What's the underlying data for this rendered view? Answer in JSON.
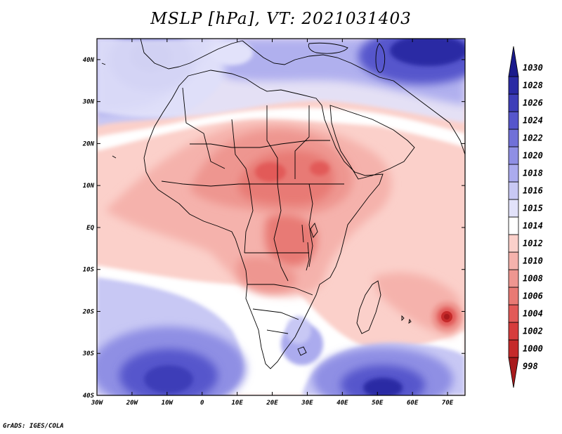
{
  "title": "MSLP [hPa], VT: 2021031403",
  "credit": "GrADS: IGES/COLA",
  "map": {
    "projection": "lat-lon",
    "lon_range": [
      -30,
      75
    ],
    "lat_range": [
      -40,
      45
    ],
    "x_ticks": [
      {
        "value": -30,
        "label": "30W"
      },
      {
        "value": -20,
        "label": "20W"
      },
      {
        "value": -10,
        "label": "10W"
      },
      {
        "value": 0,
        "label": "0"
      },
      {
        "value": 10,
        "label": "10E"
      },
      {
        "value": 20,
        "label": "20E"
      },
      {
        "value": 30,
        "label": "30E"
      },
      {
        "value": 40,
        "label": "40E"
      },
      {
        "value": 50,
        "label": "50E"
      },
      {
        "value": 60,
        "label": "60E"
      },
      {
        "value": 70,
        "label": "70E"
      }
    ],
    "y_ticks": [
      {
        "value": 40,
        "label": "40N"
      },
      {
        "value": 30,
        "label": "30N"
      },
      {
        "value": 20,
        "label": "20N"
      },
      {
        "value": 10,
        "label": "10N"
      },
      {
        "value": 0,
        "label": "EQ"
      },
      {
        "value": -10,
        "label": "10S"
      },
      {
        "value": -20,
        "label": "20S"
      },
      {
        "value": -30,
        "label": "30S"
      },
      {
        "value": -40,
        "label": "40S"
      }
    ]
  },
  "colorbar": {
    "levels": [
      {
        "label": "998",
        "color": "#a81a1c"
      },
      {
        "label": "1000",
        "color": "#c52a2a"
      },
      {
        "label": "1002",
        "color": "#d63c3c"
      },
      {
        "label": "1004",
        "color": "#e25a58"
      },
      {
        "label": "1006",
        "color": "#e87a74"
      },
      {
        "label": "1008",
        "color": "#ee9690"
      },
      {
        "label": "1010",
        "color": "#f5b2ac"
      },
      {
        "label": "1012",
        "color": "#fbd0ca"
      },
      {
        "label": "1014",
        "color": "#ffffff"
      },
      {
        "label": "1015",
        "color": "#e2e2fa"
      },
      {
        "label": "1016",
        "color": "#c8c8f4"
      },
      {
        "label": "1018",
        "color": "#ababee"
      },
      {
        "label": "1020",
        "color": "#8f8fe4"
      },
      {
        "label": "1022",
        "color": "#7070d8"
      },
      {
        "label": "1024",
        "color": "#5656cc"
      },
      {
        "label": "1026",
        "color": "#3e3eb8"
      },
      {
        "label": "1028",
        "color": "#2a2aa4"
      },
      {
        "label": "1030",
        "color": "#1a1a8c"
      }
    ]
  }
}
